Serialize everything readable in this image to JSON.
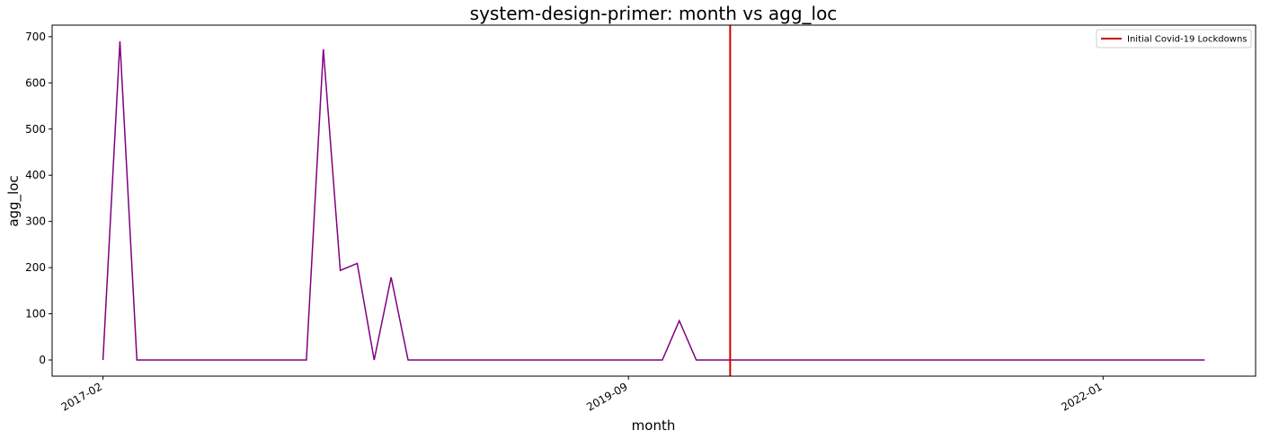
{
  "chart_data": {
    "type": "line",
    "title": "system-design-primer: month vs agg_loc",
    "xlabel": "month",
    "ylabel": "agg_loc",
    "x": [
      "2017-02",
      "2017-03",
      "2017-04",
      "2017-05",
      "2017-06",
      "2017-07",
      "2017-08",
      "2017-09",
      "2017-10",
      "2017-11",
      "2017-12",
      "2018-01",
      "2018-02",
      "2018-03",
      "2018-04",
      "2018-05",
      "2018-06",
      "2018-07",
      "2018-08",
      "2018-09",
      "2018-10",
      "2018-11",
      "2018-12",
      "2019-01",
      "2019-02",
      "2019-03",
      "2019-04",
      "2019-05",
      "2019-06",
      "2019-07",
      "2019-08",
      "2019-09",
      "2019-10",
      "2019-11",
      "2019-12",
      "2020-01",
      "2020-02",
      "2020-03",
      "2020-04",
      "2020-05",
      "2020-06",
      "2020-07",
      "2020-08",
      "2020-09",
      "2020-10",
      "2020-11",
      "2020-12",
      "2021-01",
      "2021-02",
      "2021-03",
      "2021-04",
      "2021-05",
      "2021-06",
      "2021-07",
      "2021-08",
      "2021-09",
      "2021-10",
      "2021-11",
      "2021-12",
      "2022-01",
      "2022-02",
      "2022-03",
      "2022-04",
      "2022-05",
      "2022-06",
      "2022-07"
    ],
    "series": [
      {
        "name": "agg_loc",
        "color": "#800080",
        "values": [
          0,
          690,
          0,
          0,
          0,
          0,
          0,
          0,
          0,
          0,
          0,
          0,
          0,
          673,
          194,
          209,
          0,
          179,
          0,
          0,
          0,
          0,
          0,
          0,
          0,
          0,
          0,
          0,
          0,
          0,
          0,
          0,
          0,
          0,
          85,
          0,
          0,
          0,
          0,
          0,
          0,
          0,
          0,
          0,
          0,
          0,
          0,
          0,
          0,
          0,
          0,
          0,
          0,
          0,
          0,
          0,
          0,
          0,
          0,
          0,
          0,
          0,
          0,
          0,
          0,
          0
        ]
      }
    ],
    "vlines": [
      {
        "x": "2020-03",
        "label": "Initial Covid-19 Lockdowns",
        "color": "#d00000"
      }
    ],
    "xlim": [
      "2016-11",
      "2022-10"
    ],
    "xticks": [
      "2017-02",
      "2019-09",
      "2022-01"
    ],
    "ylim": [
      -35,
      725
    ],
    "yticks": [
      0,
      100,
      200,
      300,
      400,
      500,
      600,
      700
    ],
    "legend": "upper right",
    "grid": false
  }
}
